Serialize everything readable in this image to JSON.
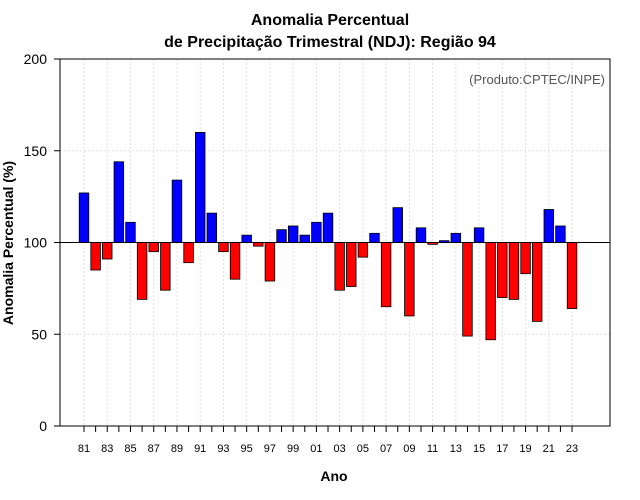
{
  "chart_data": {
    "type": "bar",
    "title_line1": "Anomalia Percentual",
    "title_line2": "de Precipitação Trimestral (NDJ): Região 94",
    "xlabel": "Ano",
    "ylabel": "Anomalia Percentual (%)",
    "credit": "(Produto:CPTEC/INPE)",
    "ylim": [
      0,
      200
    ],
    "yticks": [
      "0",
      "50",
      "100",
      "150",
      "200"
    ],
    "baseline": 100,
    "grid": true,
    "above_color": "#0000ff",
    "below_color": "#ff0000",
    "xtick_labels": [
      "81",
      "83",
      "85",
      "87",
      "89",
      "91",
      "93",
      "95",
      "97",
      "99",
      "01",
      "03",
      "05",
      "07",
      "09",
      "11",
      "13",
      "15",
      "17",
      "19",
      "21",
      "23"
    ],
    "categories": [
      "1981",
      "1982",
      "1983",
      "1984",
      "1985",
      "1986",
      "1987",
      "1988",
      "1989",
      "1990",
      "1991",
      "1992",
      "1993",
      "1994",
      "1995",
      "1996",
      "1997",
      "1998",
      "1999",
      "2000",
      "2001",
      "2002",
      "2003",
      "2004",
      "2005",
      "2006",
      "2007",
      "2008",
      "2009",
      "2010",
      "2011",
      "2012",
      "2013",
      "2014",
      "2015",
      "2016",
      "2017",
      "2018",
      "2019",
      "2020",
      "2021",
      "2022",
      "2023"
    ],
    "values": [
      127,
      85,
      91,
      144,
      111,
      69,
      95,
      74,
      134,
      89,
      160,
      116,
      95,
      80,
      104,
      98,
      79,
      107,
      109,
      104,
      111,
      116,
      74,
      76,
      92,
      105,
      65,
      119,
      60,
      108,
      99,
      101,
      105,
      49,
      108,
      47,
      70,
      69,
      83,
      57,
      118,
      109,
      64
    ]
  }
}
